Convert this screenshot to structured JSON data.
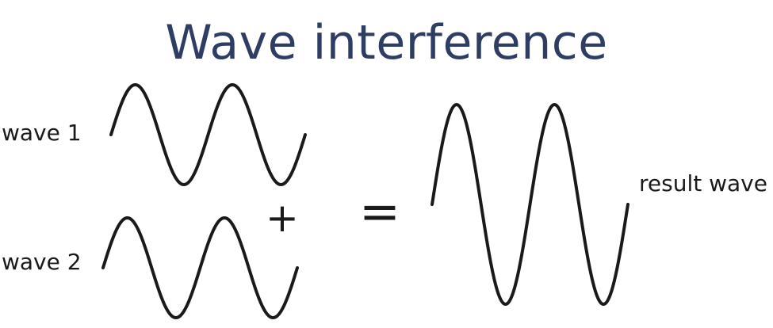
{
  "title": "Wave interference",
  "labels": {
    "wave1": "wave 1",
    "wave2": "wave 2",
    "result": "result wave"
  },
  "operators": {
    "plus": "+",
    "equals": "="
  },
  "colors": {
    "title": "#2e3d63",
    "stroke": "#1a1a1a"
  },
  "waves": {
    "wave1": {
      "amplitude": 1,
      "cycles": 2
    },
    "wave2": {
      "amplitude": 1,
      "cycles": 2
    },
    "result": {
      "amplitude": 2,
      "cycles": 2
    }
  }
}
